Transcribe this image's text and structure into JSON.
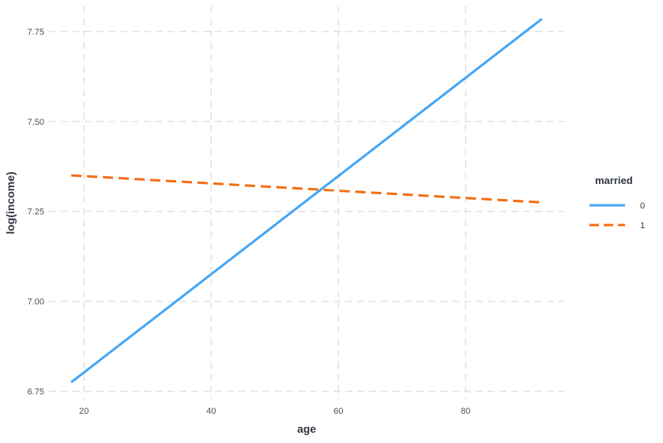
{
  "chart_data": {
    "type": "line",
    "title": "",
    "xlabel": "age",
    "ylabel": "log(income)",
    "xlim": [
      14.5,
      95.5
    ],
    "ylim": [
      6.727,
      7.82
    ],
    "xticks": [
      20,
      40,
      60,
      80
    ],
    "yticks": [
      6.75,
      7.0,
      7.25,
      7.5,
      7.75
    ],
    "xtick_labels": [
      "20",
      "40",
      "60",
      "80"
    ],
    "ytick_labels": [
      "6.75",
      "7.00",
      "7.25",
      "7.50",
      "7.75"
    ],
    "grid": true,
    "grid_style": "dashed",
    "legend_position": "right",
    "legend_title": "married",
    "series": [
      {
        "name": "0",
        "x": [
          18,
          92
        ],
        "y": [
          6.775,
          7.785
        ],
        "color": "#42a5f5",
        "linestyle": "solid"
      },
      {
        "name": "1",
        "x": [
          18,
          92
        ],
        "y": [
          7.35,
          7.275
        ],
        "color": "#f46d12",
        "linestyle": "dashed"
      }
    ]
  }
}
